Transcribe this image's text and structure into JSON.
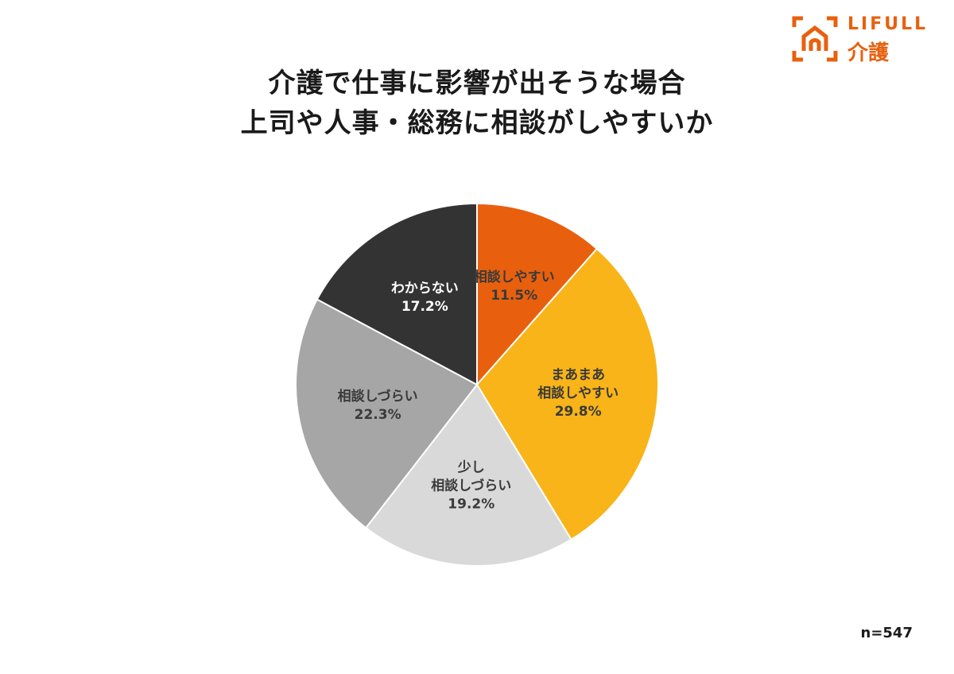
{
  "title": {
    "line1": "介護で仕事に影響が出そうな場合",
    "line2": "上司や人事・総務に相談がしやすいか"
  },
  "logo": {
    "line1": "LIFULL",
    "line2": "介護",
    "icon": "house-frame-icon",
    "color": "#e8600e"
  },
  "sample_size": "n=547",
  "chart_data": {
    "type": "pie",
    "title": "介護で仕事に影響が出そうな場合 上司や人事・総務に相談がしやすいか",
    "slices": [
      {
        "label_lines": [
          "相談しやすい"
        ],
        "value": 11.5,
        "value_label": "11.5%",
        "color": "#e8600e",
        "text_color": "#3a3a3a"
      },
      {
        "label_lines": [
          "まあまあ",
          "相談しやすい"
        ],
        "value": 29.8,
        "value_label": "29.8%",
        "color": "#f8b418",
        "text_color": "#3a3a3a"
      },
      {
        "label_lines": [
          "少し",
          "相談しづらい"
        ],
        "value": 19.2,
        "value_label": "19.2%",
        "color": "#d9d9d9",
        "text_color": "#3a3a3a"
      },
      {
        "label_lines": [
          "相談しづらい"
        ],
        "value": 22.3,
        "value_label": "22.3%",
        "color": "#a6a6a6",
        "text_color": "#3a3a3a"
      },
      {
        "label_lines": [
          "わからない"
        ],
        "value": 17.2,
        "value_label": "17.2%",
        "color": "#333333",
        "text_color": "#ffffff"
      }
    ],
    "start": "top",
    "direction": "clockwise",
    "legend": "none"
  }
}
